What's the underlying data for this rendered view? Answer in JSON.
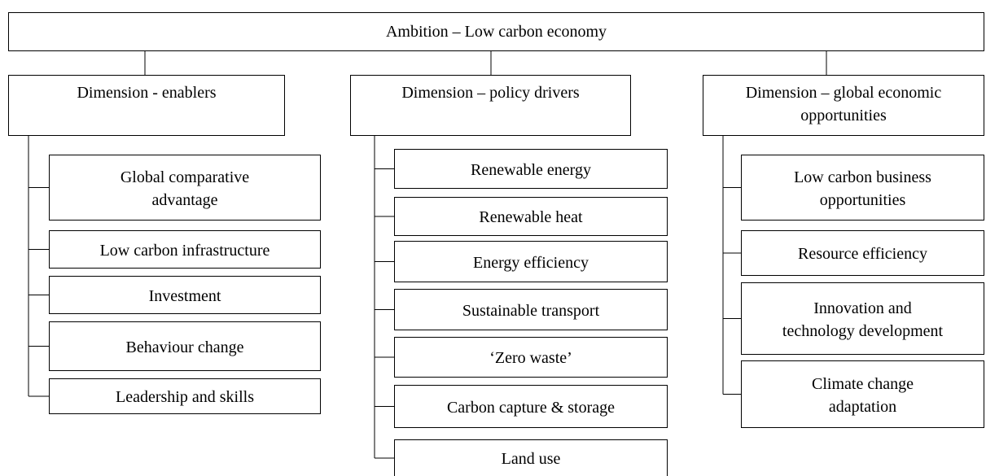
{
  "title": "Ambition – Low carbon economy",
  "dimensions": [
    {
      "label": [
        "Dimension - enablers"
      ],
      "items": [
        [
          "Global comparative",
          "advantage"
        ],
        [
          "Low carbon infrastructure"
        ],
        [
          "Investment"
        ],
        [
          "Behaviour change"
        ],
        [
          "Leadership and skills"
        ]
      ]
    },
    {
      "label": [
        "Dimension – policy drivers"
      ],
      "items": [
        [
          "Renewable energy"
        ],
        [
          "Renewable heat"
        ],
        [
          "Energy efficiency"
        ],
        [
          "Sustainable transport"
        ],
        [
          "‘Zero waste’"
        ],
        [
          "Carbon capture & storage"
        ],
        [
          "Land use"
        ]
      ]
    },
    {
      "label": [
        "Dimension – global economic",
        "opportunities"
      ],
      "items": [
        [
          "Low carbon business",
          "opportunities"
        ],
        [
          "Resource efficiency"
        ],
        [
          "Innovation and",
          "technology development"
        ],
        [
          "Climate change",
          "adaptation"
        ]
      ]
    }
  ]
}
